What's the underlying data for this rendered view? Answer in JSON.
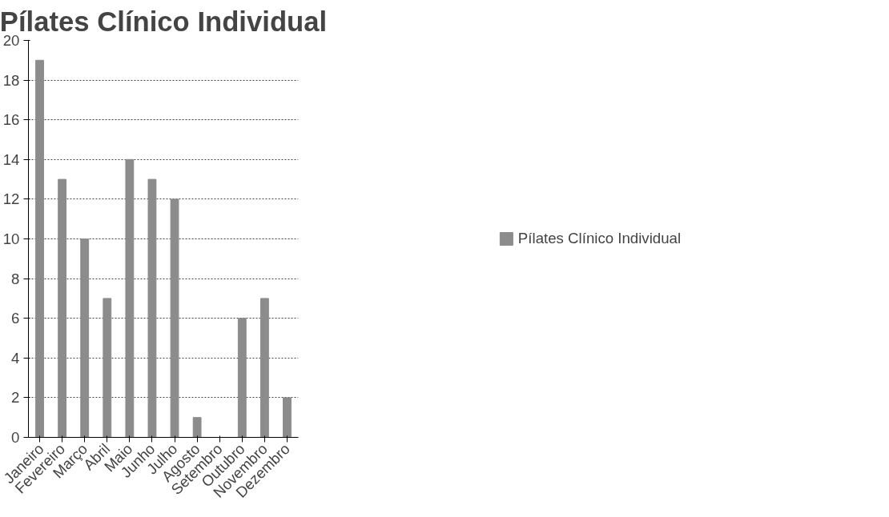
{
  "chart_data": {
    "type": "bar",
    "title": "Pílates Clínico Individual",
    "categories": [
      "Janeiro",
      "Fevereiro",
      "Março",
      "Abril",
      "Maio",
      "Junho",
      "Julho",
      "Agosto",
      "Setembro",
      "Outubro",
      "Novembro",
      "Dezembro"
    ],
    "series": [
      {
        "name": "Pílates Clínico Individual",
        "color": "#8c8c8c",
        "values": [
          19,
          13,
          10,
          7,
          14,
          13,
          12,
          1,
          0,
          6,
          7,
          2
        ]
      }
    ],
    "ylim": [
      0,
      20
    ],
    "yticks": [
      0,
      2,
      4,
      6,
      8,
      10,
      12,
      14,
      16,
      18,
      20
    ],
    "grid": "y",
    "legend": "right"
  }
}
